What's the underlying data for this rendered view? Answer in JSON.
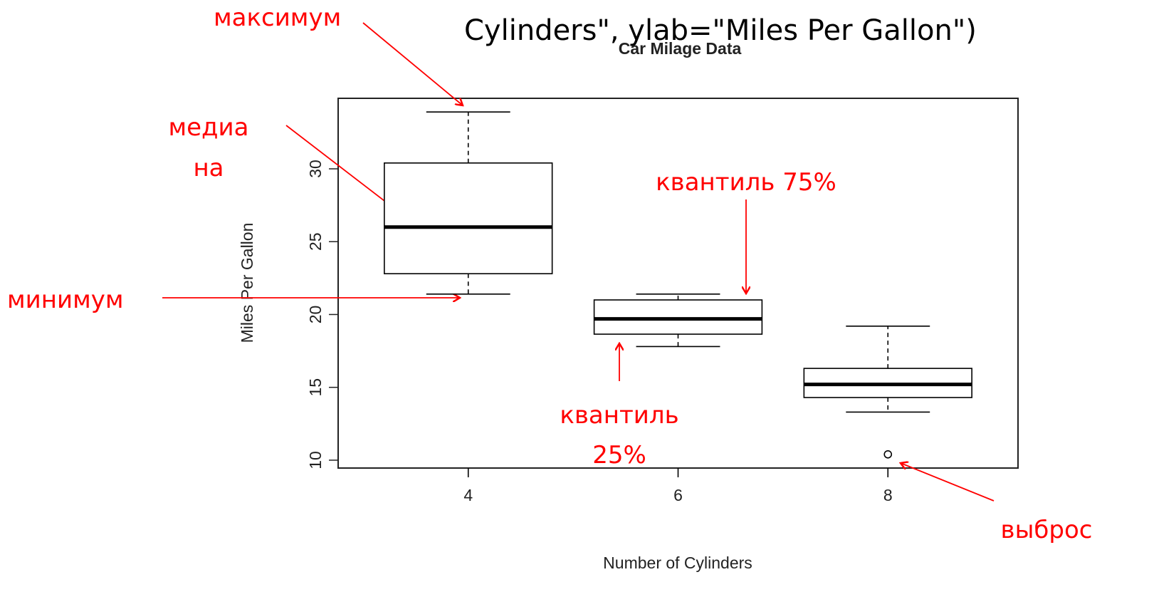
{
  "chart_data": {
    "type": "boxplot",
    "code_text": "Cylinders\", ylab=\"Miles Per Gallon\")",
    "title": "Car Milage Data",
    "x_label": "Number of Cylinders",
    "y_label": "Miles Per Gallon",
    "categories": [
      "4",
      "6",
      "8"
    ],
    "boxes": [
      {
        "min": 21.4,
        "q1": 22.8,
        "median": 26.0,
        "q3": 30.4,
        "max": 33.9,
        "outliers": []
      },
      {
        "min": 17.8,
        "q1": 18.65,
        "median": 19.7,
        "q3": 21.0,
        "max": 21.4,
        "outliers": []
      },
      {
        "min": 13.3,
        "q1": 14.3,
        "median": 15.2,
        "q3": 16.3,
        "max": 19.2,
        "outliers": [
          10.4
        ]
      }
    ],
    "ylim": [
      9.46,
      34.84
    ],
    "yticks": [
      10,
      15,
      20,
      25,
      30
    ],
    "color": "#000000",
    "annotations": {
      "maximum": "максимум",
      "median": [
        "медиа",
        "на"
      ],
      "minimum": "минимум",
      "q75": "квантиль 75%",
      "q25": [
        "квантиль",
        "25%"
      ],
      "outlier": "выброс"
    },
    "annotation_color": "#ff0000"
  }
}
